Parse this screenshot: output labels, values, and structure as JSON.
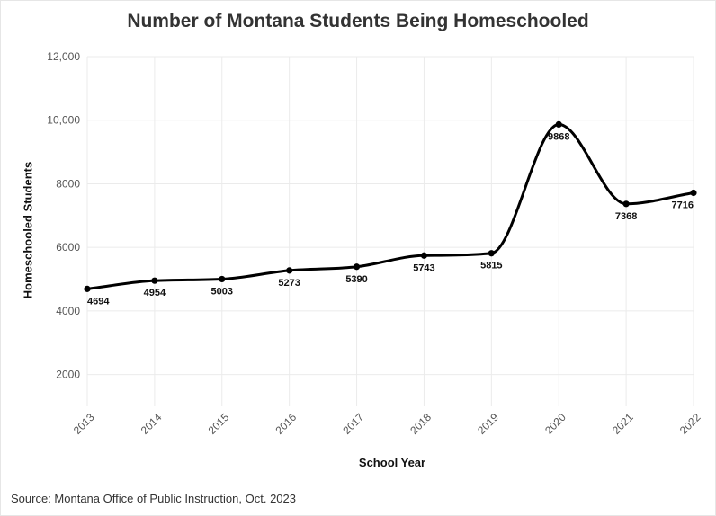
{
  "chart_data": {
    "type": "line",
    "title": "Number of Montana Students Being Homeschooled",
    "xlabel": "School Year",
    "ylabel": "Homeschooled Students",
    "source": "Source: Montana Office of Public Instruction, Oct. 2023",
    "x": [
      2013,
      2014,
      2015,
      2016,
      2017,
      2018,
      2019,
      2020,
      2021,
      2022
    ],
    "values": [
      4694,
      4954,
      5003,
      5273,
      5390,
      5743,
      5815,
      9868,
      7368,
      7716
    ],
    "data_labels": [
      "4694",
      "4954",
      "5003",
      "5273",
      "5390",
      "5743",
      "5815",
      "9868",
      "7368",
      "7716"
    ],
    "y_ticks": [
      {
        "value": 2000,
        "label": "2000"
      },
      {
        "value": 4000,
        "label": "4000"
      },
      {
        "value": 6000,
        "label": "6000"
      },
      {
        "value": 8000,
        "label": "8000"
      },
      {
        "value": 10000,
        "label": "10,000"
      },
      {
        "value": 12000,
        "label": "12,000"
      }
    ],
    "x_tick_labels": [
      "2013",
      "2014",
      "2015",
      "2016",
      "2017",
      "2018",
      "2019",
      "2020",
      "2021",
      "2022"
    ],
    "ylim": [
      1000,
      12000
    ],
    "xlim": [
      2013,
      2022
    ],
    "grid": true,
    "line_color": "#000000",
    "grid_color": "#ebebeb"
  }
}
